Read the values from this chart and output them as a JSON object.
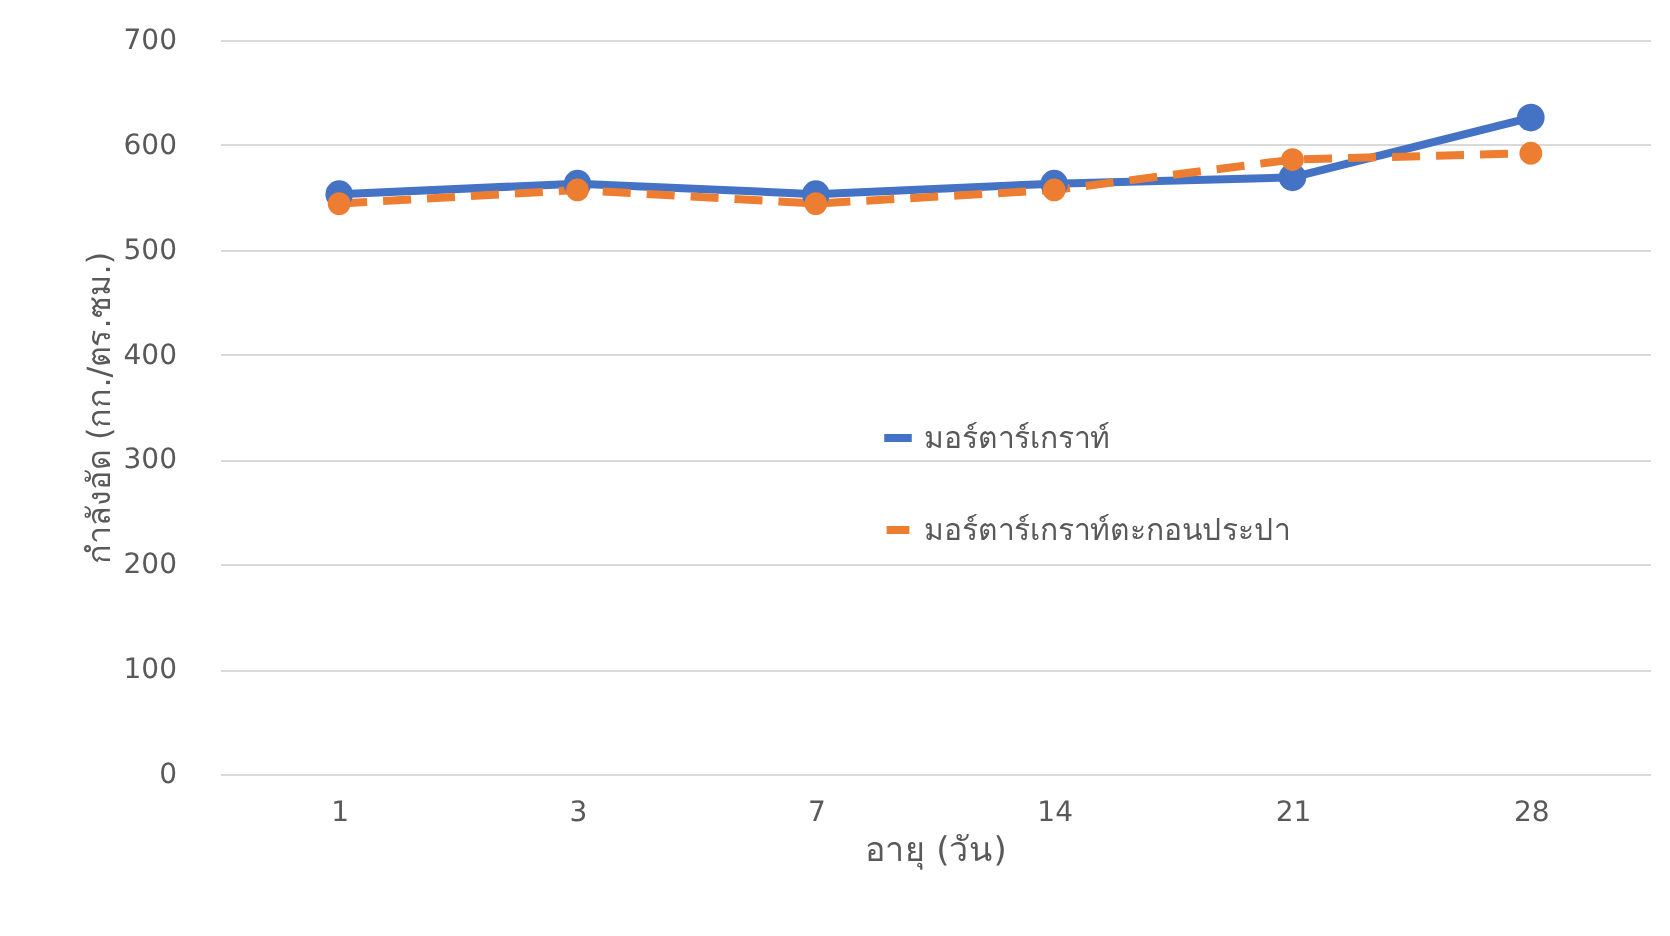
{
  "chart_data": {
    "type": "line",
    "xlabel": "อายุ (วัน)",
    "ylabel": "กำลังอัด (กก./ตร.ซม.)",
    "categories": [
      "1",
      "3",
      "7",
      "14",
      "21",
      "28"
    ],
    "series": [
      {
        "name": "มอร์ตาร์เกราท์",
        "color": "#4472c4",
        "line_style": "solid",
        "values": [
          553,
          563,
          553,
          563,
          569,
          626
        ]
      },
      {
        "name": "มอร์ตาร์เกราท์ตะกอนประปา",
        "color": "#ed7d31",
        "line_style": "dashed",
        "values": [
          544,
          557,
          544,
          557,
          586,
          592
        ]
      }
    ],
    "ylim": [
      0,
      700
    ],
    "yticks": [
      0,
      100,
      200,
      300,
      400,
      500,
      600,
      700
    ],
    "grid": "y",
    "legend": "center",
    "marker": "circle"
  }
}
